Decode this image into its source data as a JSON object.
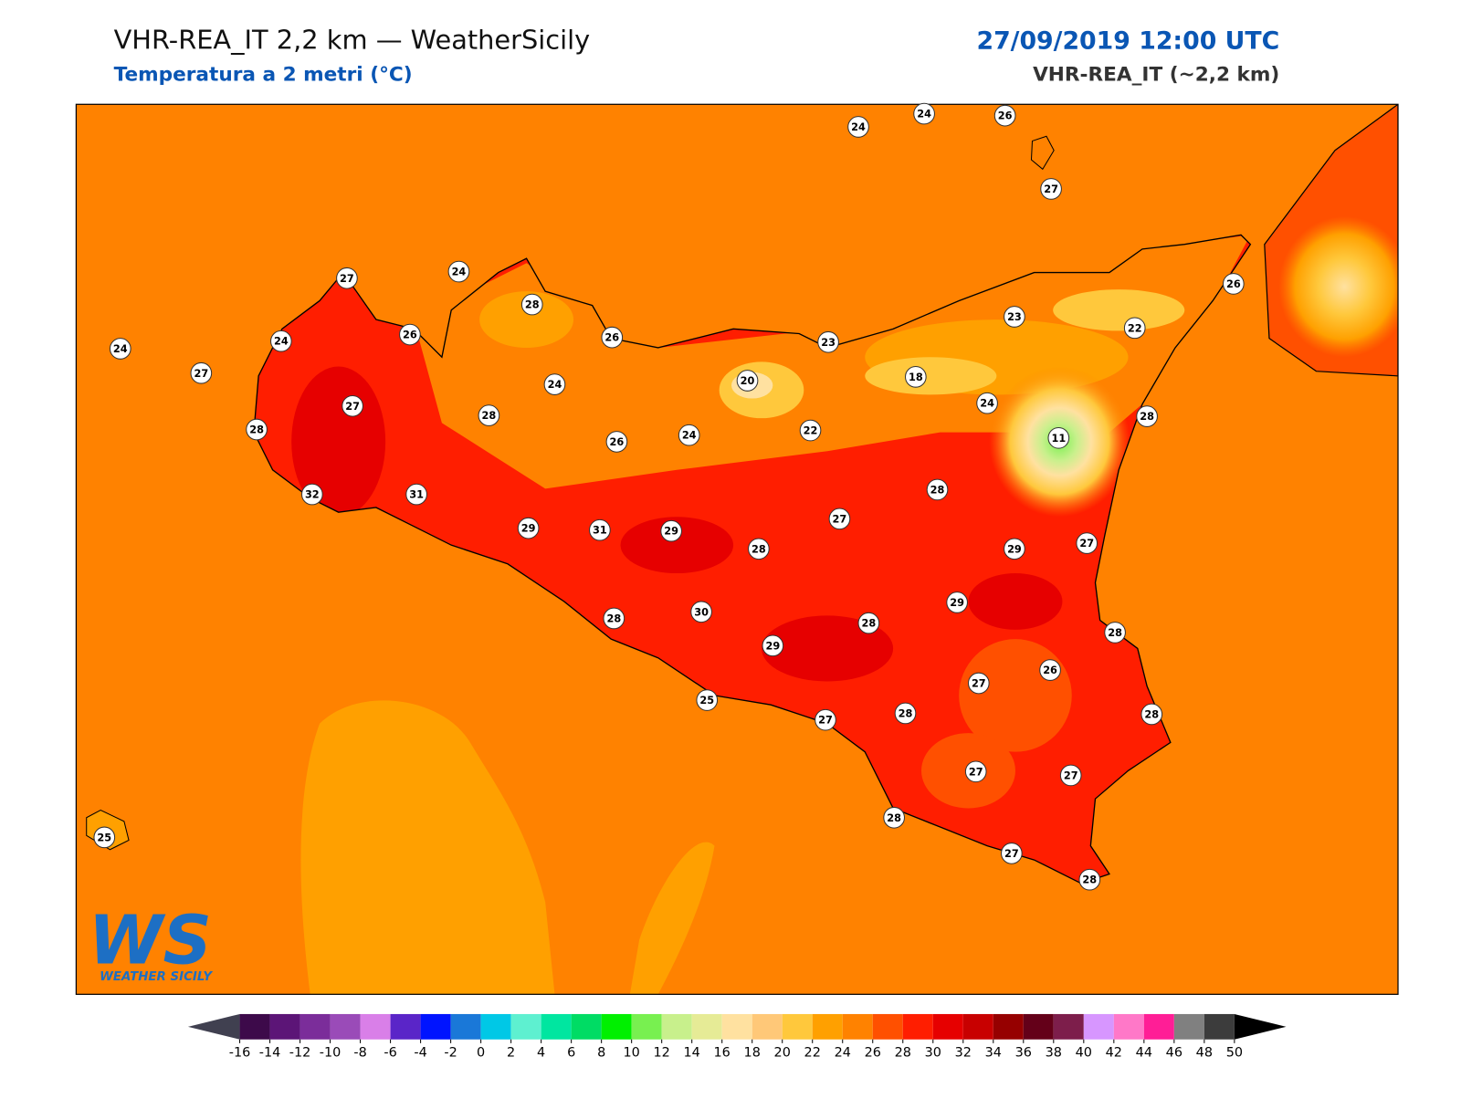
{
  "header": {
    "title": "VHR-REA_IT 2,2 km — WeatherSicily",
    "subtitle": "Temperatura a 2 metri (°C)",
    "datetime": "27/09/2019 12:00 UTC",
    "model": "VHR-REA_IT (~2,2 km)"
  },
  "map": {
    "stations": [
      24,
      24,
      26,
      27,
      27,
      24,
      28,
      26,
      26,
      26,
      23,
      23,
      22,
      24,
      24,
      27,
      24,
      20,
      18,
      27,
      24,
      28,
      28,
      22,
      28,
      26,
      24,
      11,
      32,
      31,
      28,
      27,
      29,
      31,
      29,
      28,
      29,
      27,
      29,
      28,
      30,
      28,
      28,
      29,
      26,
      27,
      25,
      27,
      28,
      28,
      27,
      27,
      28,
      27,
      28,
      25
    ]
  },
  "logo": {
    "initials": "WS",
    "name": "WEATHER SICILY"
  },
  "colorbar": {
    "ticks": [
      -16,
      -14,
      -12,
      -10,
      -8,
      -6,
      -4,
      -2,
      0,
      2,
      4,
      6,
      8,
      10,
      12,
      14,
      16,
      18,
      20,
      22,
      24,
      26,
      28,
      30,
      32,
      34,
      36,
      38,
      40,
      42,
      44,
      46,
      48,
      50
    ],
    "colors": [
      "#3d0a4a",
      "#5c1577",
      "#7b2d9a",
      "#9a4bb8",
      "#d97fe8",
      "#5a25c8",
      "#0014ff",
      "#1a78d8",
      "#00c8e6",
      "#5ef0d0",
      "#00e6a0",
      "#00dc64",
      "#00f000",
      "#78f050",
      "#c8f08c",
      "#e6eb96",
      "#ffe1a0",
      "#ffc878",
      "#ffc83c",
      "#ffa000",
      "#ff8200",
      "#ff5000",
      "#ff1e00",
      "#e60000",
      "#c80000",
      "#960000",
      "#640019",
      "#7d1e4b",
      "#d796ff",
      "#ff78c8",
      "#ff1e96",
      "#808080",
      "#3c3c3c"
    ],
    "under_color": "#404050",
    "over_color": "#000000"
  }
}
